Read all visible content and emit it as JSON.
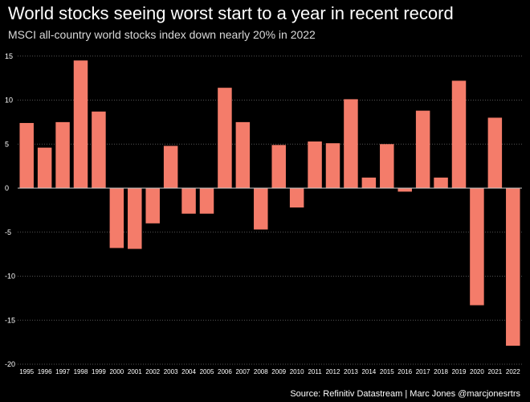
{
  "header": {
    "title": "World stocks seeing worst start to a year in recent record",
    "subtitle": "MSCI all-country world stocks index down nearly 20% in 2022"
  },
  "footer": {
    "source": "Source: Refinitiv Datastream | Marc Jones @marcjonesrtrs"
  },
  "colors": {
    "background": "#000000",
    "bar": "#f47c6a",
    "grid": "#555555",
    "zero_line": "#cccccc",
    "text": "#ffffff"
  },
  "chart_data": {
    "type": "bar",
    "title": "World stocks seeing worst start to a year in recent record",
    "subtitle": "MSCI all-country world stocks index down nearly 20% in 2022",
    "xlabel": "",
    "ylabel": "",
    "ylim": [
      -20,
      16
    ],
    "yticks": [
      15,
      10,
      5,
      0,
      -5,
      -10,
      -15,
      -20
    ],
    "grid": true,
    "categories": [
      "1995",
      "1996",
      "1997",
      "1998",
      "1999",
      "2000",
      "2001",
      "2002",
      "2003",
      "2004",
      "2005",
      "2006",
      "2007",
      "2008",
      "2009",
      "2010",
      "2011",
      "2012",
      "2013",
      "2014",
      "2015",
      "2016",
      "2017",
      "2018",
      "2019",
      "2020",
      "2021",
      "2022"
    ],
    "values": [
      7.4,
      4.6,
      7.5,
      14.5,
      8.7,
      -6.8,
      -6.9,
      -4.0,
      4.8,
      -2.9,
      -2.9,
      11.4,
      7.5,
      -4.7,
      4.9,
      -2.2,
      5.3,
      5.1,
      10.1,
      1.2,
      5.0,
      -0.4,
      8.8,
      1.2,
      12.2,
      -13.3,
      8.0,
      -17.9
    ]
  }
}
